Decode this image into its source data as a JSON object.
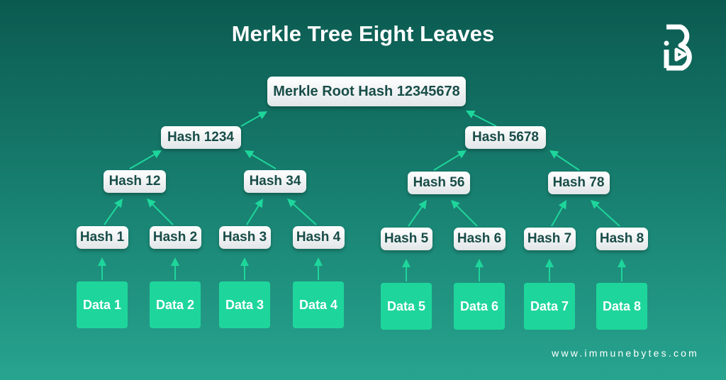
{
  "title": "Merkle Tree Eight Leaves",
  "root": "Merkle Root Hash 12345678",
  "level2": [
    "Hash 1234",
    "Hash 5678"
  ],
  "level3": [
    "Hash 12",
    "Hash 34",
    "Hash 56",
    "Hash 78"
  ],
  "leaves": [
    "Hash 1",
    "Hash 2",
    "Hash 3",
    "Hash 4",
    "Hash 5",
    "Hash 6",
    "Hash 7",
    "Hash 8"
  ],
  "data": [
    "Data 1",
    "Data 2",
    "Data 3",
    "Data 4",
    "Data 5",
    "Data 6",
    "Data 7",
    "Data 8"
  ],
  "website": "www.immunebytes.com",
  "logo": "immunebytes B logo",
  "colors": {
    "arrow": "#1ed69b",
    "node_text": "#184d48",
    "data_box": "#1ed69b"
  }
}
